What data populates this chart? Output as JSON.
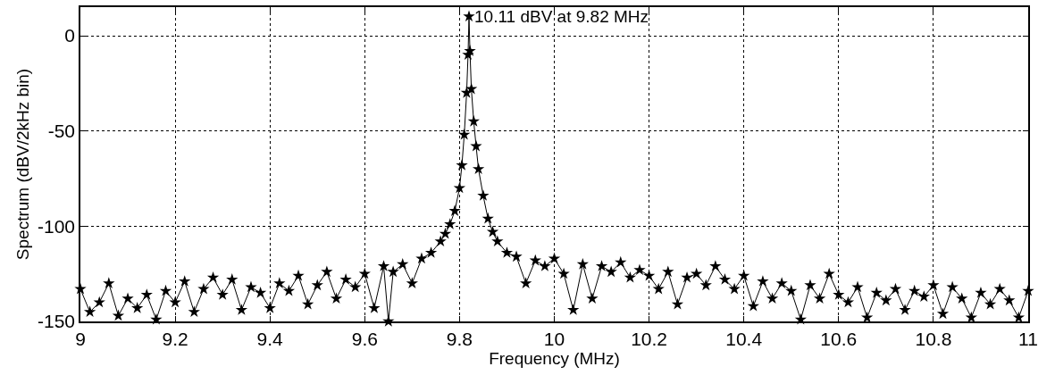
{
  "chart_data": {
    "type": "line",
    "xlabel": "Frequency (MHz)",
    "ylabel": "Spectrum (dBV/2kHz bin)",
    "annotations": [
      {
        "text": "10.11 dBV at 9.82 MHz",
        "x": 9.82,
        "y": 10.11
      }
    ],
    "xlim": [
      9,
      11
    ],
    "xticks": [
      9,
      9.2,
      9.4,
      9.6,
      9.8,
      10,
      10.2,
      10.4,
      10.6,
      10.8,
      11
    ],
    "ylim": [
      -150,
      15
    ],
    "yticks": [
      -150,
      -100,
      -50,
      0
    ],
    "grid": true,
    "marker": "star",
    "line_style": "solid",
    "series": [
      {
        "color": "#000000",
        "x": [
          9.0,
          9.02,
          9.04,
          9.06,
          9.08,
          9.1,
          9.12,
          9.14,
          9.16,
          9.18,
          9.2,
          9.22,
          9.24,
          9.26,
          9.28,
          9.3,
          9.32,
          9.34,
          9.36,
          9.38,
          9.4,
          9.42,
          9.44,
          9.46,
          9.48,
          9.5,
          9.52,
          9.54,
          9.56,
          9.58,
          9.6,
          9.62,
          9.64,
          9.65,
          9.66,
          9.68,
          9.7,
          9.72,
          9.74,
          9.76,
          9.77,
          9.78,
          9.79,
          9.8,
          9.805,
          9.81,
          9.815,
          9.818,
          9.82,
          9.822,
          9.825,
          9.83,
          9.835,
          9.84,
          9.85,
          9.86,
          9.87,
          9.88,
          9.9,
          9.92,
          9.94,
          9.96,
          9.98,
          10.0,
          10.02,
          10.04,
          10.06,
          10.08,
          10.1,
          10.12,
          10.14,
          10.16,
          10.18,
          10.2,
          10.22,
          10.24,
          10.26,
          10.28,
          10.3,
          10.32,
          10.34,
          10.36,
          10.38,
          10.4,
          10.42,
          10.44,
          10.46,
          10.48,
          10.5,
          10.52,
          10.54,
          10.56,
          10.58,
          10.6,
          10.62,
          10.64,
          10.66,
          10.68,
          10.7,
          10.72,
          10.74,
          10.76,
          10.78,
          10.8,
          10.82,
          10.84,
          10.86,
          10.88,
          10.9,
          10.92,
          10.94,
          10.96,
          10.98,
          11.0
        ],
        "values": [
          -133,
          -145,
          -140,
          -130,
          -147,
          -138,
          -143,
          -136,
          -149,
          -134,
          -140,
          -129,
          -145,
          -133,
          -127,
          -136,
          -128,
          -144,
          -132,
          -135,
          -143,
          -130,
          -134,
          -126,
          -141,
          -131,
          -124,
          -138,
          -128,
          -132,
          -125,
          -143,
          -121,
          -150,
          -124,
          -120,
          -130,
          -117,
          -114,
          -108,
          -104,
          -99,
          -92,
          -80,
          -68,
          -52,
          -30,
          -10,
          10.11,
          -8,
          -28,
          -45,
          -58,
          -70,
          -84,
          -96,
          -103,
          -108,
          -114,
          -116,
          -130,
          -118,
          -121,
          -117,
          -125,
          -144,
          -120,
          -138,
          -121,
          -124,
          -119,
          -127,
          -123,
          -126,
          -133,
          -124,
          -141,
          -127,
          -125,
          -131,
          -121,
          -128,
          -133,
          -126,
          -142,
          -129,
          -138,
          -130,
          -134,
          -149,
          -131,
          -138,
          -125,
          -136,
          -140,
          -132,
          -148,
          -135,
          -139,
          -133,
          -144,
          -134,
          -137,
          -131,
          -146,
          -132,
          -138,
          -148,
          -135,
          -141,
          -133,
          -139,
          -148,
          -134
        ]
      }
    ]
  }
}
